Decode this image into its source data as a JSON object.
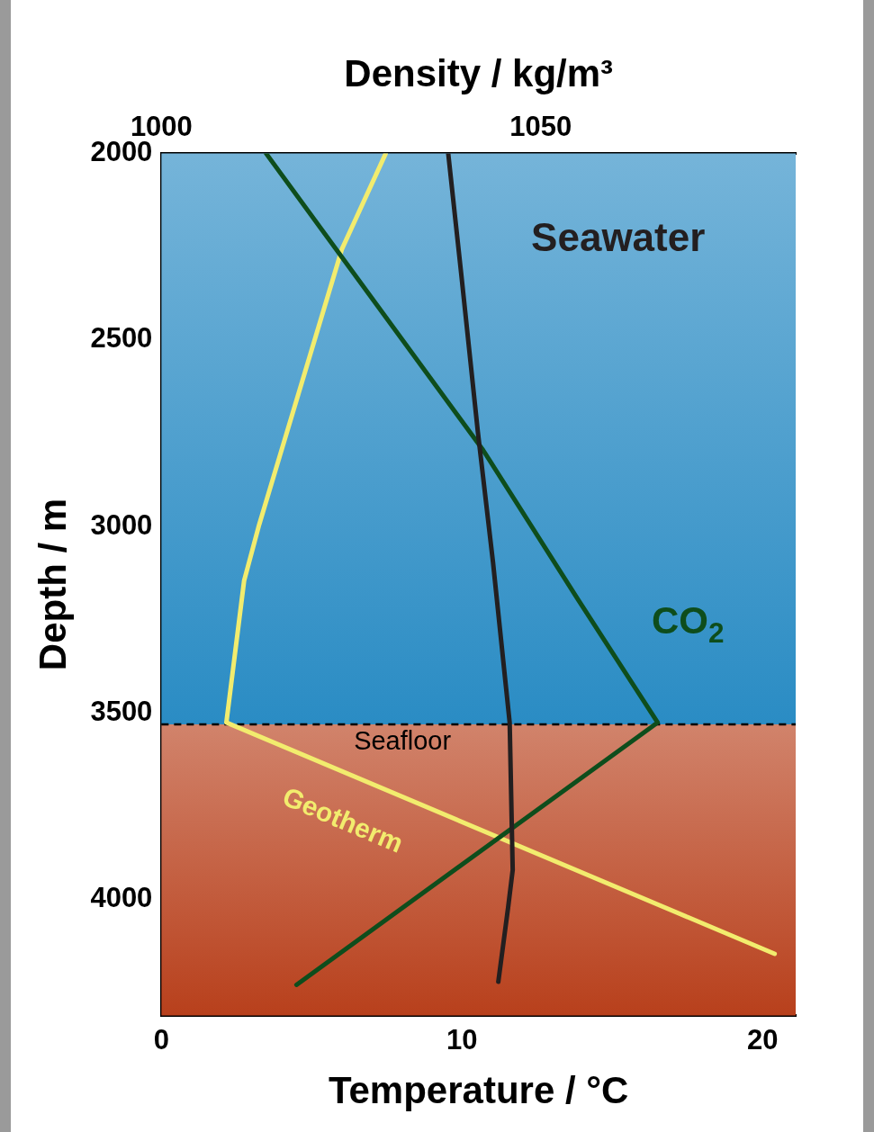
{
  "chart_data": {
    "type": "line",
    "xlabel": "Temperature / °C",
    "x2label": "Density / kg/m³",
    "ylabel": "Depth / m",
    "xlim": [
      0,
      21.1
    ],
    "xticks": [
      0,
      10,
      20
    ],
    "x2lim": [
      1000,
      1083.6
    ],
    "x2ticks": [
      1000,
      1050
    ],
    "ylim": [
      4310,
      2000
    ],
    "yticks": [
      2000,
      2500,
      3000,
      3500,
      4000
    ],
    "legend": false,
    "marker": "none",
    "line_style": "solid",
    "series": [
      {
        "name": "Seawater",
        "color": "#231f20",
        "axis": "x2",
        "x": [
          1037.8,
          1039.5,
          1041.7,
          1043.7,
          1045.9,
          1046.3,
          1045.7,
          1044.4
        ],
        "values": [
          2000,
          2320,
          2745,
          3095,
          3525,
          3920,
          4020,
          4220
        ]
      },
      {
        "name": "CO$_{2}$",
        "color": "#0e4d1c",
        "axis": "x2",
        "x": [
          1013.8,
          1025.3,
          1042.4,
          1054.9,
          1065.4,
          1017.8
        ],
        "values": [
          2000,
          2320,
          2795,
          3195,
          3525,
          4228
        ]
      },
      {
        "name": "Geotherm",
        "color": "#f2ec6e",
        "x": [
          7.46,
          6.0,
          3.25,
          2.75,
          2.16,
          20.4
        ],
        "values": [
          2000,
          2257,
          2995,
          3145,
          3525,
          4145
        ]
      }
    ],
    "bands": [
      {
        "axis": "y",
        "from": 2000,
        "to": 3530,
        "color": "#2a8cc4"
      },
      {
        "axis": "y",
        "from": 3530,
        "to": 4310,
        "color": "#b8401c"
      }
    ],
    "ref_lines": [
      {
        "axis": "y",
        "value": 3530,
        "label": "Seafloor",
        "color": "#000000",
        "line_style": "dashed"
      }
    ]
  }
}
